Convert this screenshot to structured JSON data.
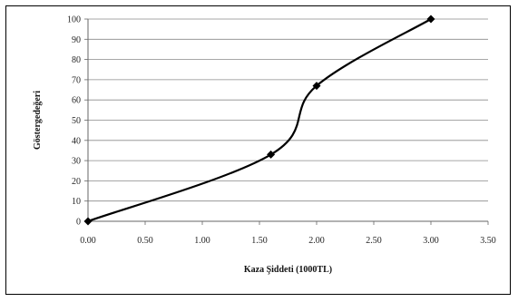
{
  "chart_data": {
    "type": "line",
    "title": "",
    "xlabel": "Kaza Şiddeti  (1000TL)",
    "ylabel": "Göstergedeğeri",
    "xlim": [
      0,
      3.5
    ],
    "ylim": [
      0,
      100
    ],
    "x_ticks": [
      "0.00",
      "0.50",
      "1.00",
      "1.50",
      "2.00",
      "2.50",
      "3.00",
      "3.50"
    ],
    "y_ticks": [
      "0",
      "10",
      "20",
      "30",
      "40",
      "50",
      "60",
      "70",
      "80",
      "90",
      "100"
    ],
    "grid": "horizontal",
    "legend": "none",
    "series": [
      {
        "x": [
          0,
          1.6,
          2.0,
          3.0
        ],
        "y": [
          0,
          33,
          67,
          100
        ],
        "color": "#000000",
        "marker": "diamond",
        "smooth": true
      }
    ]
  }
}
